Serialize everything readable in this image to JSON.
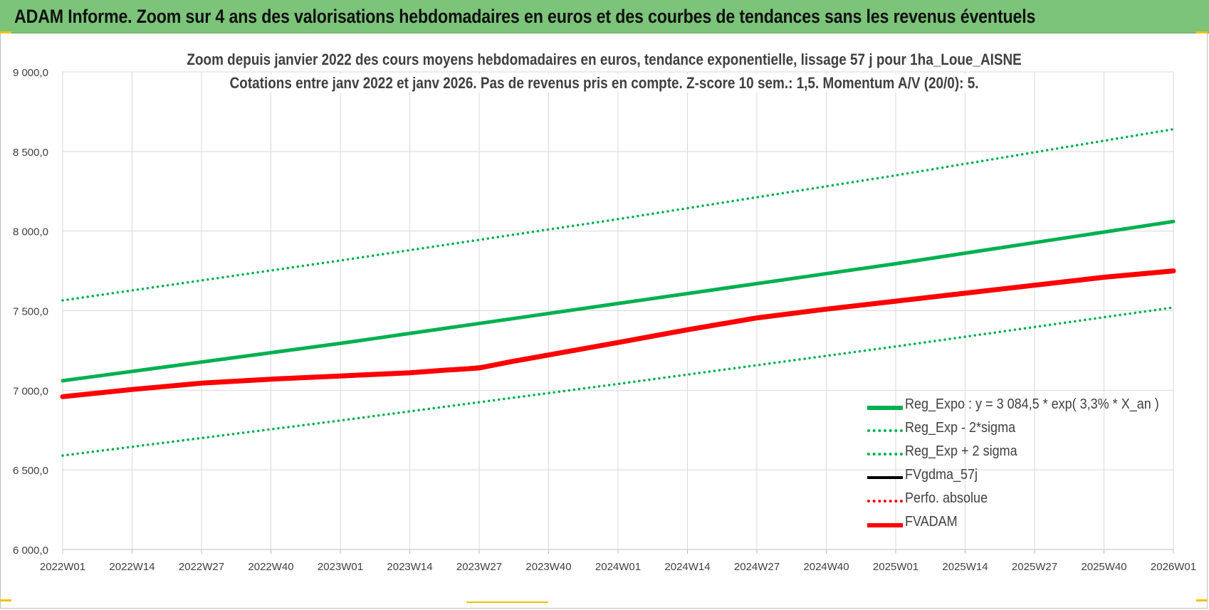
{
  "banner": {
    "title": "ADAM Informe. Zoom sur 4 ans des valorisations hebdomadaires en euros et des courbes de tendances sans les revenus éventuels"
  },
  "chart_data": {
    "type": "line",
    "title": "Zoom depuis janvier 2022 des cours moyens hebdomadaires en euros, tendance exponentielle, lissage 57 j pour 1ha_Loue_AISNE",
    "subtitle": "Cotations entre janv 2022 et janv 2026. Pas de revenus pris en compte. Z-score 10 sem.: 1,5. Momentum A/V (20/0): 5.",
    "xlabel": "",
    "ylabel": "",
    "ylim": [
      6000,
      9000
    ],
    "yticks": [
      "9 000,0",
      "8 500,0",
      "8 000,0",
      "7 500,0",
      "7 000,0",
      "6 500,0",
      "6 000,0"
    ],
    "ytick_values": [
      9000,
      8500,
      8000,
      7500,
      7000,
      6500,
      6000
    ],
    "x_tick_labels": [
      "2022W01",
      "2022W14",
      "2022W27",
      "2022W40",
      "2023W01",
      "2023W14",
      "2023W27",
      "2023W40",
      "2024W01",
      "2024W14",
      "2024W27",
      "2024W40",
      "2025W01",
      "2025W14",
      "2025W27",
      "2025W40",
      "2026W01"
    ],
    "grid": true,
    "legend_position": "bottom-right",
    "series": [
      {
        "name": "Reg_Expo : y = 3 084,5 * exp( 3,3% * X_an )",
        "color": "#00b050",
        "style": "solid-thick",
        "x": [
          "2022W01",
          "2023W01",
          "2024W01",
          "2025W01",
          "2026W01"
        ],
        "values": [
          7060,
          7295,
          7545,
          7795,
          8060
        ]
      },
      {
        "name": "Reg_Exp - 2*sigma",
        "color": "#00b050",
        "style": "dotted",
        "x": [
          "2022W01",
          "2023W01",
          "2024W01",
          "2025W01",
          "2026W01"
        ],
        "values": [
          6590,
          6810,
          7040,
          7275,
          7520
        ]
      },
      {
        "name": "Reg_Exp + 2 sigma",
        "color": "#00b050",
        "style": "dotted",
        "x": [
          "2022W01",
          "2023W01",
          "2024W01",
          "2025W01",
          "2026W01"
        ],
        "values": [
          7565,
          7815,
          8075,
          8350,
          8640
        ]
      },
      {
        "name": "FVgdma_57j",
        "color": "#000000",
        "style": "solid",
        "x": [
          "2022W01",
          "2022W14",
          "2022W27",
          "2022W40",
          "2023W01",
          "2023W14",
          "2023W20",
          "2023W27",
          "2023W33",
          "2023W40",
          "2024W01",
          "2024W14",
          "2024W27",
          "2024W40",
          "2025W01",
          "2025W14",
          "2025W27",
          "2025W40",
          "2026W01"
        ],
        "values": [
          6960,
          7005,
          7045,
          7070,
          7090,
          7110,
          7128,
          7150,
          7185,
          7222,
          7300,
          7380,
          7460,
          7510,
          7560,
          7610,
          7660,
          7705,
          7745
        ]
      },
      {
        "name": "Perfo. absolue",
        "color": "#ff0000",
        "style": "dotted",
        "x": [],
        "values": []
      },
      {
        "name": "FVADAM",
        "color": "#ff0000",
        "style": "solid-thick",
        "x": [
          "2022W01",
          "2022W14",
          "2022W27",
          "2022W40",
          "2023W01",
          "2023W14",
          "2023W20",
          "2023W27",
          "2023W33",
          "2023W40",
          "2024W01",
          "2024W14",
          "2024W27",
          "2024W40",
          "2025W01",
          "2025W14",
          "2025W27",
          "2025W40",
          "2026W01"
        ],
        "values": [
          6960,
          7005,
          7045,
          7070,
          7090,
          7110,
          7125,
          7140,
          7180,
          7222,
          7300,
          7380,
          7455,
          7510,
          7560,
          7610,
          7660,
          7710,
          7750
        ]
      }
    ]
  }
}
